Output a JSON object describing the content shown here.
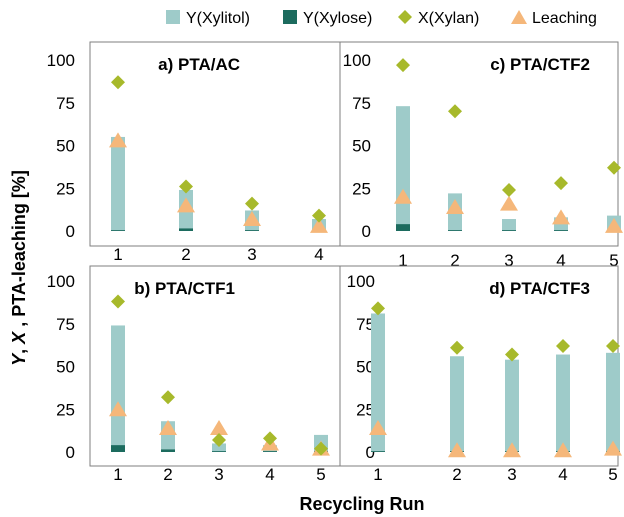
{
  "colors": {
    "xylitol": "#9ecbc9",
    "xylose": "#1c6b5e",
    "xylan": "#a7b92b",
    "leaching": "#f5b77a",
    "frame": "#7f7f7f"
  },
  "legend": {
    "xylitol": "Y(Xylitol)",
    "xylose": "Y(Xylose)",
    "xylan": "X(Xylan)",
    "leaching": "Leaching"
  },
  "xlabel": "Recycling Run",
  "ylabel": "Y, X , PTA-leaching [%]",
  "ylim": [
    0,
    100
  ],
  "yticks": [
    "0",
    "25",
    "50",
    "75",
    "100"
  ],
  "chart_data": [
    {
      "type": "bar",
      "title": "a) PTA/AC",
      "categories": [
        "1",
        "2",
        "3",
        "4"
      ],
      "series": [
        {
          "name": "Y(Xylitol)",
          "values": [
            55,
            24,
            12,
            7
          ]
        },
        {
          "name": "Y(Xylose)",
          "values": [
            0.5,
            1.5,
            0.5,
            0.5
          ]
        },
        {
          "name": "X(Xylan)",
          "values": [
            87,
            26,
            16,
            9
          ]
        },
        {
          "name": "Leaching",
          "values": [
            53,
            15,
            7,
            3
          ]
        }
      ]
    },
    {
      "type": "bar",
      "title": "c) PTA/CTF2",
      "categories": [
        "1",
        "2",
        "3",
        "4",
        "5"
      ],
      "series": [
        {
          "name": "Y(Xylitol)",
          "values": [
            73,
            22,
            7,
            8,
            9
          ]
        },
        {
          "name": "Y(Xylose)",
          "values": [
            4,
            0.5,
            0.5,
            0.5,
            0.5
          ]
        },
        {
          "name": "X(Xylan)",
          "values": [
            97,
            70,
            24,
            28,
            37
          ]
        },
        {
          "name": "Leaching",
          "values": [
            20,
            14,
            16,
            8,
            3
          ]
        }
      ]
    },
    {
      "type": "bar",
      "title": "b) PTA/CTF1",
      "categories": [
        "1",
        "2",
        "3",
        "4",
        "5"
      ],
      "series": [
        {
          "name": "Y(Xylitol)",
          "values": [
            74,
            18,
            5,
            4,
            10
          ]
        },
        {
          "name": "Y(Xylose)",
          "values": [
            4,
            1.5,
            0.5,
            0.5,
            0.5
          ]
        },
        {
          "name": "X(Xylan)",
          "values": [
            88,
            32,
            7,
            8,
            2
          ]
        },
        {
          "name": "Leaching",
          "values": [
            25,
            14,
            14,
            5,
            2
          ]
        }
      ]
    },
    {
      "type": "bar",
      "title": "d) PTA/CTF3",
      "categories": [
        "1",
        "2",
        "3",
        "4",
        "5"
      ],
      "series": [
        {
          "name": "Y(Xylitol)",
          "values": [
            81,
            56,
            54,
            57,
            58
          ]
        },
        {
          "name": "Y(Xylose)",
          "values": [
            0.5,
            0.5,
            0.5,
            0.5,
            0.5
          ]
        },
        {
          "name": "X(Xylan)",
          "values": [
            84,
            61,
            57,
            62,
            62
          ]
        },
        {
          "name": "Leaching",
          "values": [
            14,
            1,
            1,
            1,
            2
          ]
        }
      ]
    }
  ]
}
